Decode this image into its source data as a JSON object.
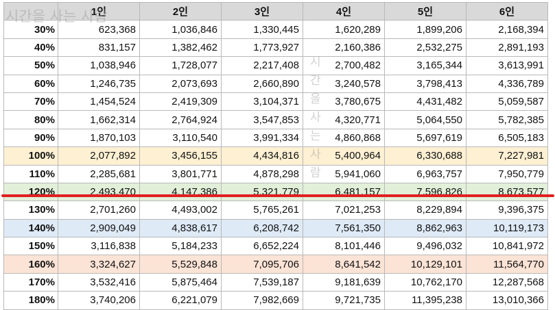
{
  "table": {
    "headers": [
      "",
      "1인",
      "2인",
      "3인",
      "4인",
      "5인",
      "6인"
    ],
    "rows": [
      {
        "pct": "30%",
        "values": [
          "623,368",
          "1,036,846",
          "1,330,445",
          "1,620,289",
          "1,899,206",
          "2,168,394"
        ],
        "highlight": ""
      },
      {
        "pct": "40%",
        "values": [
          "831,157",
          "1,382,462",
          "1,773,927",
          "2,160,386",
          "2,532,275",
          "2,891,193"
        ],
        "highlight": ""
      },
      {
        "pct": "50%",
        "values": [
          "1,038,946",
          "1,728,077",
          "2,217,408",
          "2,700,482",
          "3,165,344",
          "3,613,991"
        ],
        "highlight": ""
      },
      {
        "pct": "60%",
        "values": [
          "1,246,735",
          "2,073,693",
          "2,660,890",
          "3,240,578",
          "3,798,413",
          "4,336,789"
        ],
        "highlight": ""
      },
      {
        "pct": "70%",
        "values": [
          "1,454,524",
          "2,419,309",
          "3,104,371",
          "3,780,675",
          "4,431,482",
          "5,059,587"
        ],
        "highlight": ""
      },
      {
        "pct": "80%",
        "values": [
          "1,662,314",
          "2,764,924",
          "3,547,853",
          "4,320,771",
          "5,064,550",
          "5,782,385"
        ],
        "highlight": ""
      },
      {
        "pct": "90%",
        "values": [
          "1,870,103",
          "3,110,540",
          "3,991,334",
          "4,860,868",
          "5,697,619",
          "6,505,183"
        ],
        "highlight": ""
      },
      {
        "pct": "100%",
        "values": [
          "2,077,892",
          "3,456,155",
          "4,434,816",
          "5,400,964",
          "6,330,688",
          "7,227,981"
        ],
        "highlight": "yellow"
      },
      {
        "pct": "110%",
        "values": [
          "2,285,681",
          "3,801,771",
          "4,878,298",
          "5,941,060",
          "6,963,757",
          "7,950,779"
        ],
        "highlight": ""
      },
      {
        "pct": "120%",
        "values": [
          "2,493,470",
          "4,147,386",
          "5,321,779",
          "6,481,157",
          "7,596,826",
          "8,673,577"
        ],
        "highlight": "green"
      },
      {
        "pct": "130%",
        "values": [
          "2,701,260",
          "4,493,002",
          "5,765,261",
          "7,021,253",
          "8,229,894",
          "9,396,375"
        ],
        "highlight": ""
      },
      {
        "pct": "140%",
        "values": [
          "2,909,049",
          "4,838,617",
          "6,208,742",
          "7,561,350",
          "8,862,963",
          "10,119,173"
        ],
        "highlight": "blue"
      },
      {
        "pct": "150%",
        "values": [
          "3,116,838",
          "5,184,233",
          "6,652,224",
          "8,101,446",
          "9,496,032",
          "10,841,972"
        ],
        "highlight": ""
      },
      {
        "pct": "160%",
        "values": [
          "3,324,627",
          "5,529,848",
          "7,095,706",
          "8,641,542",
          "10,129,101",
          "11,564,770"
        ],
        "highlight": "peach"
      },
      {
        "pct": "170%",
        "values": [
          "3,532,416",
          "5,875,464",
          "7,539,187",
          "9,181,639",
          "10,762,170",
          "12,287,568"
        ],
        "highlight": ""
      },
      {
        "pct": "180%",
        "values": [
          "3,740,206",
          "6,221,079",
          "7,982,669",
          "9,721,735",
          "11,395,238",
          "13,010,366"
        ],
        "highlight": ""
      }
    ]
  },
  "watermark": {
    "top_text": "시간을 사는 사람",
    "vertical_text": "시간을사는사람"
  },
  "colors": {
    "header_bg": "#d9d9d9",
    "row_yellow": "#fdf0d3",
    "row_green": "#e2efd9",
    "row_blue": "#deeaf6",
    "row_peach": "#fbe3d6",
    "marker_line": "#e02020"
  }
}
